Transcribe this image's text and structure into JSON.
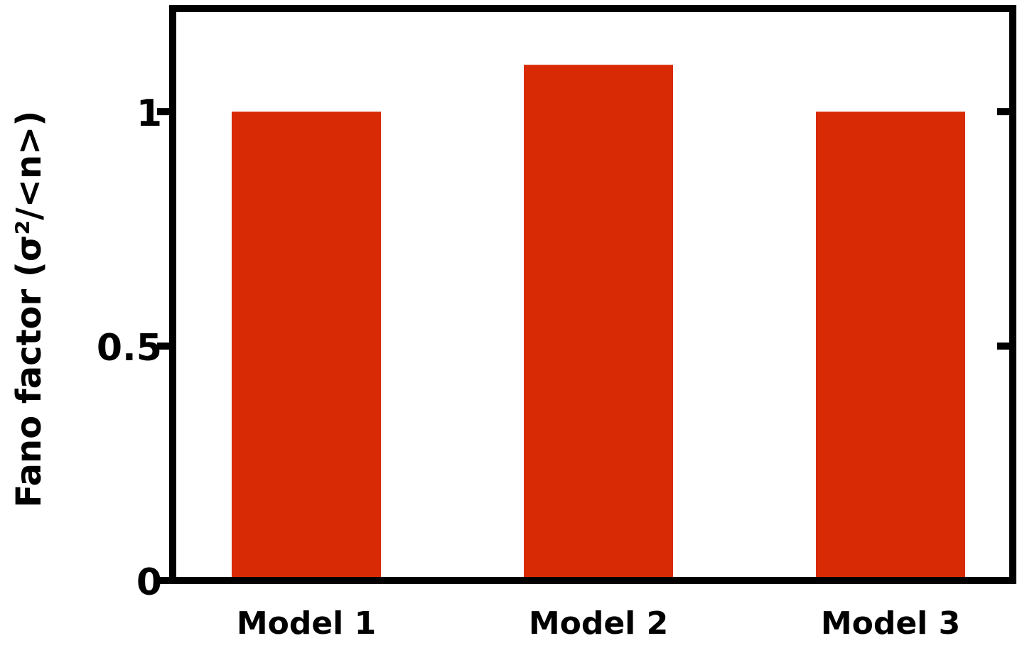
{
  "chart_data": {
    "type": "bar",
    "y_label": "Fano factor (σ²/<n>)",
    "categories": [
      "Model 1",
      "Model 2",
      "Model 3"
    ],
    "values": [
      1.0,
      1.1,
      1.0
    ],
    "color": "#d92a06",
    "ylim": [
      0,
      1.22
    ],
    "yticks": [
      0,
      0.5,
      1
    ]
  }
}
